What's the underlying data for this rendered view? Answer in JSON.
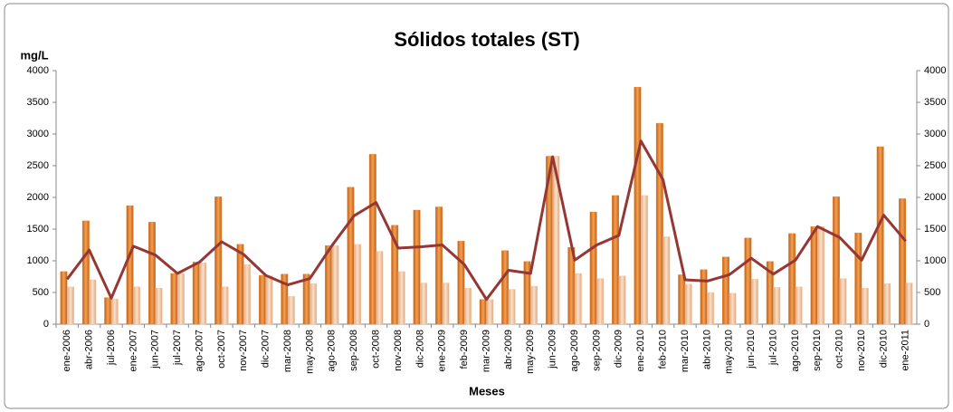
{
  "chart_data": {
    "type": "bar",
    "title": "Sólidos totales (ST)",
    "y_label": "mg/L",
    "x_label": "Meses",
    "categories": [
      "ene-2006",
      "abr-2006",
      "jul-2006",
      "ene-2007",
      "jun-2007",
      "jul-2007",
      "ago-2007",
      "oct-2007",
      "nov-2007",
      "dic-2007",
      "mar-2008",
      "may-2008",
      "ago-2008",
      "sep-2008",
      "oct-2008",
      "nov-2008",
      "dic-2008",
      "ene-2009",
      "feb-2009",
      "mar-2009",
      "abr-2009",
      "may-2009",
      "jun-2009",
      "ago-2009",
      "sep-2009",
      "dic-2009",
      "ene-2010",
      "feb-2010",
      "mar-2010",
      "abr-2010",
      "may-2010",
      "jun-2010",
      "jul-2010",
      "ago-2010",
      "sep-2010",
      "oct-2010",
      "nov-2010",
      "dic-2010",
      "ene-2011"
    ],
    "series": [
      {
        "type": "bar",
        "color": "#e8862a",
        "values": [
          830,
          1630,
          420,
          1870,
          1610,
          800,
          980,
          2010,
          1260,
          770,
          790,
          790,
          1240,
          2160,
          2680,
          1560,
          1800,
          1850,
          1310,
          390,
          1160,
          990,
          2650,
          1210,
          1770,
          2030,
          3740,
          3170,
          780,
          860,
          1060,
          1360,
          990,
          1430,
          1540,
          2010,
          1440,
          2800,
          1980
        ]
      },
      {
        "type": "bar",
        "color": "#f5c9a4",
        "values": [
          590,
          700,
          400,
          590,
          570,
          800,
          970,
          590,
          940,
          760,
          440,
          640,
          1240,
          1260,
          1150,
          830,
          650,
          650,
          570,
          390,
          550,
          600,
          2650,
          800,
          720,
          760,
          2030,
          1380,
          630,
          500,
          490,
          710,
          580,
          590,
          1540,
          720,
          570,
          640,
          650
        ]
      },
      {
        "type": "line",
        "color": "#953735",
        "values": [
          710,
          1170,
          410,
          1230,
          1090,
          800,
          980,
          1300,
          1100,
          770,
          620,
          720,
          1240,
          1710,
          1920,
          1200,
          1220,
          1250,
          940,
          390,
          850,
          800,
          2640,
          1010,
          1250,
          1400,
          2890,
          2280,
          700,
          680,
          780,
          1040,
          790,
          1010,
          1540,
          1370,
          1010,
          1720,
          1310
        ]
      }
    ],
    "ylim": [
      0,
      4000
    ],
    "yticks": [
      0,
      500,
      1000,
      1500,
      2000,
      2500,
      3000,
      3500,
      4000
    ],
    "y2lim": [
      0,
      4000
    ],
    "y2ticks": [
      0,
      500,
      1000,
      1500,
      2000,
      2500,
      3000,
      3500,
      4000
    ]
  }
}
